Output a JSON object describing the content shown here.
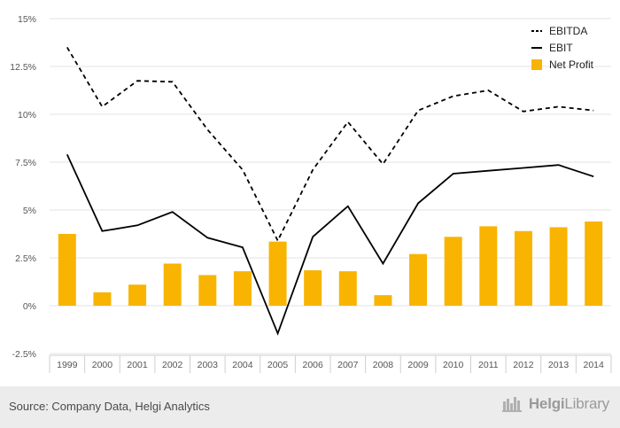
{
  "chart_data": {
    "type": "bar+line",
    "categories": [
      "1999",
      "2000",
      "2001",
      "2002",
      "2003",
      "2004",
      "2005",
      "2006",
      "2007",
      "2008",
      "2009",
      "2010",
      "2011",
      "2012",
      "2013",
      "2014"
    ],
    "series": [
      {
        "name": "EBITDA",
        "kind": "line",
        "style": "dashed",
        "color": "#000000",
        "values": [
          13.5,
          10.4,
          11.75,
          11.7,
          9.2,
          7.1,
          3.4,
          7.1,
          9.6,
          7.4,
          10.2,
          10.95,
          11.25,
          10.15,
          10.4,
          10.2
        ]
      },
      {
        "name": "EBIT",
        "kind": "line",
        "style": "solid",
        "color": "#000000",
        "values": [
          7.9,
          3.9,
          4.2,
          4.9,
          3.55,
          3.05,
          -1.45,
          3.6,
          5.2,
          2.2,
          5.35,
          6.9,
          7.05,
          7.2,
          7.35,
          6.75
        ]
      },
      {
        "name": "Net Profit",
        "kind": "bar",
        "color": "#F8B400",
        "values": [
          3.75,
          0.7,
          1.1,
          2.2,
          1.6,
          1.8,
          3.35,
          1.85,
          1.8,
          0.55,
          2.7,
          3.6,
          4.15,
          3.9,
          4.1,
          4.4
        ]
      }
    ],
    "y_ticks": [
      "15%",
      "12.5%",
      "10%",
      "7.5%",
      "5%",
      "2.5%",
      "0%",
      "-2.5%"
    ],
    "ylim": [
      -2.5,
      15
    ],
    "grid": true,
    "legend_position": "top-right"
  },
  "footer": {
    "source": "Source: Company Data, Helgi Analytics",
    "logo_text_bold": "Helgi",
    "logo_text_rest": "Library"
  }
}
